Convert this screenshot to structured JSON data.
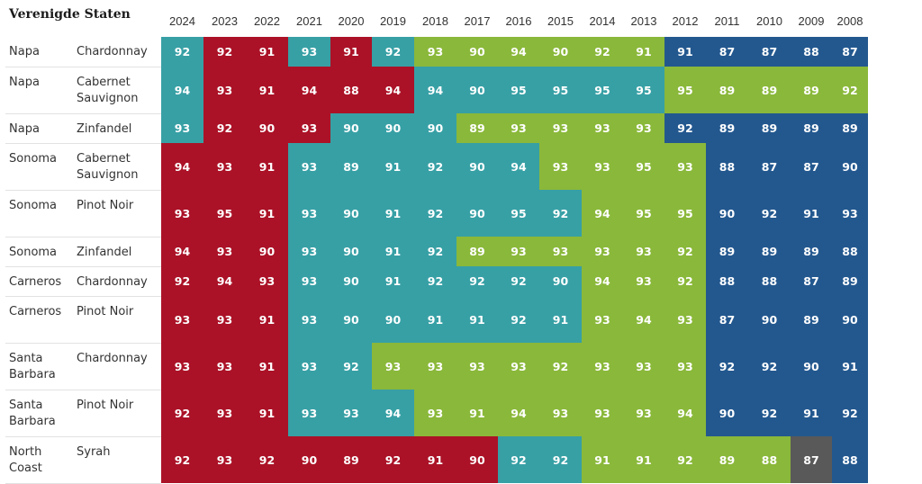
{
  "title": "Verenigde Staten",
  "years": [
    "2024",
    "2023",
    "2022",
    "2021",
    "2020",
    "2019",
    "2018",
    "2017",
    "2016",
    "2015",
    "2014",
    "2013",
    "2012",
    "2011",
    "2010",
    "2009",
    "2008"
  ],
  "colors": {
    "red": "#ab1227",
    "teal": "#37a0a5",
    "green": "#8ab83a",
    "blue": "#23588f",
    "gray": "#595959"
  },
  "rows": [
    {
      "region": "Napa",
      "variety": "Chardonnay",
      "scores": [
        92,
        92,
        91,
        93,
        91,
        92,
        93,
        90,
        94,
        90,
        92,
        91,
        91,
        87,
        87,
        88,
        87
      ],
      "ratings": [
        "teal",
        "red",
        "red",
        "teal",
        "red",
        "teal",
        "green",
        "green",
        "green",
        "green",
        "green",
        "green",
        "blue",
        "blue",
        "blue",
        "blue",
        "blue"
      ]
    },
    {
      "region": "Napa",
      "variety": "Cabernet Sauvignon",
      "scores": [
        94,
        93,
        91,
        94,
        88,
        94,
        94,
        90,
        95,
        95,
        95,
        95,
        95,
        89,
        89,
        89,
        92
      ],
      "ratings": [
        "teal",
        "red",
        "red",
        "red",
        "red",
        "red",
        "teal",
        "teal",
        "teal",
        "teal",
        "teal",
        "teal",
        "green",
        "green",
        "green",
        "green",
        "green"
      ]
    },
    {
      "region": "Napa",
      "variety": "Zinfandel",
      "scores": [
        93,
        92,
        90,
        93,
        90,
        90,
        90,
        89,
        93,
        93,
        93,
        93,
        92,
        89,
        89,
        89,
        89
      ],
      "ratings": [
        "teal",
        "red",
        "red",
        "red",
        "teal",
        "teal",
        "teal",
        "green",
        "green",
        "green",
        "green",
        "green",
        "blue",
        "blue",
        "blue",
        "blue",
        "blue"
      ]
    },
    {
      "region": "Sonoma",
      "variety": "Cabernet Sauvignon",
      "scores": [
        94,
        93,
        91,
        93,
        89,
        91,
        92,
        90,
        94,
        93,
        93,
        95,
        93,
        88,
        87,
        87,
        90
      ],
      "ratings": [
        "red",
        "red",
        "red",
        "teal",
        "teal",
        "teal",
        "teal",
        "teal",
        "teal",
        "green",
        "green",
        "green",
        "green",
        "blue",
        "blue",
        "blue",
        "blue"
      ]
    },
    {
      "region": "Sonoma",
      "variety": "Pinot Noir",
      "scores": [
        93,
        95,
        91,
        93,
        90,
        91,
        92,
        90,
        95,
        92,
        94,
        95,
        95,
        90,
        92,
        91,
        93
      ],
      "ratings": [
        "red",
        "red",
        "red",
        "teal",
        "teal",
        "teal",
        "teal",
        "teal",
        "teal",
        "teal",
        "green",
        "green",
        "green",
        "blue",
        "blue",
        "blue",
        "blue"
      ]
    },
    {
      "region": "Sonoma",
      "variety": "Zinfandel",
      "scores": [
        94,
        93,
        90,
        93,
        90,
        91,
        92,
        89,
        93,
        93,
        93,
        93,
        92,
        89,
        89,
        89,
        88
      ],
      "ratings": [
        "red",
        "red",
        "red",
        "teal",
        "teal",
        "teal",
        "teal",
        "green",
        "green",
        "green",
        "green",
        "green",
        "green",
        "blue",
        "blue",
        "blue",
        "blue"
      ]
    },
    {
      "region": "Carneros",
      "variety": "Chardonnay",
      "scores": [
        92,
        94,
        93,
        93,
        90,
        91,
        92,
        92,
        92,
        90,
        94,
        93,
        92,
        88,
        88,
        87,
        89
      ],
      "ratings": [
        "red",
        "red",
        "red",
        "teal",
        "teal",
        "teal",
        "teal",
        "teal",
        "teal",
        "teal",
        "green",
        "green",
        "green",
        "blue",
        "blue",
        "blue",
        "blue"
      ]
    },
    {
      "region": "Carneros",
      "variety": "Pinot Noir",
      "scores": [
        93,
        93,
        91,
        93,
        90,
        90,
        91,
        91,
        92,
        91,
        93,
        94,
        93,
        87,
        90,
        89,
        90
      ],
      "ratings": [
        "red",
        "red",
        "red",
        "teal",
        "teal",
        "teal",
        "teal",
        "teal",
        "teal",
        "teal",
        "green",
        "green",
        "green",
        "blue",
        "blue",
        "blue",
        "blue"
      ]
    },
    {
      "region": "Santa Barbara",
      "variety": "Chardonnay",
      "scores": [
        93,
        93,
        91,
        93,
        92,
        93,
        93,
        93,
        93,
        92,
        93,
        93,
        93,
        92,
        92,
        90,
        91
      ],
      "ratings": [
        "red",
        "red",
        "red",
        "teal",
        "teal",
        "green",
        "green",
        "green",
        "green",
        "green",
        "green",
        "green",
        "green",
        "blue",
        "blue",
        "blue",
        "blue"
      ]
    },
    {
      "region": "Santa Barbara",
      "variety": "Pinot Noir",
      "scores": [
        92,
        93,
        91,
        93,
        93,
        94,
        93,
        91,
        94,
        93,
        93,
        93,
        94,
        90,
        92,
        91,
        92
      ],
      "ratings": [
        "red",
        "red",
        "red",
        "teal",
        "teal",
        "teal",
        "green",
        "green",
        "green",
        "green",
        "green",
        "green",
        "green",
        "blue",
        "blue",
        "blue",
        "blue"
      ]
    },
    {
      "region": "North Coast",
      "variety": "Syrah",
      "scores": [
        92,
        93,
        92,
        90,
        89,
        92,
        91,
        90,
        92,
        92,
        91,
        91,
        92,
        89,
        88,
        87,
        88
      ],
      "ratings": [
        "red",
        "red",
        "red",
        "red",
        "red",
        "red",
        "red",
        "red",
        "teal",
        "teal",
        "green",
        "green",
        "green",
        "green",
        "green",
        "gray",
        "blue"
      ]
    }
  ]
}
